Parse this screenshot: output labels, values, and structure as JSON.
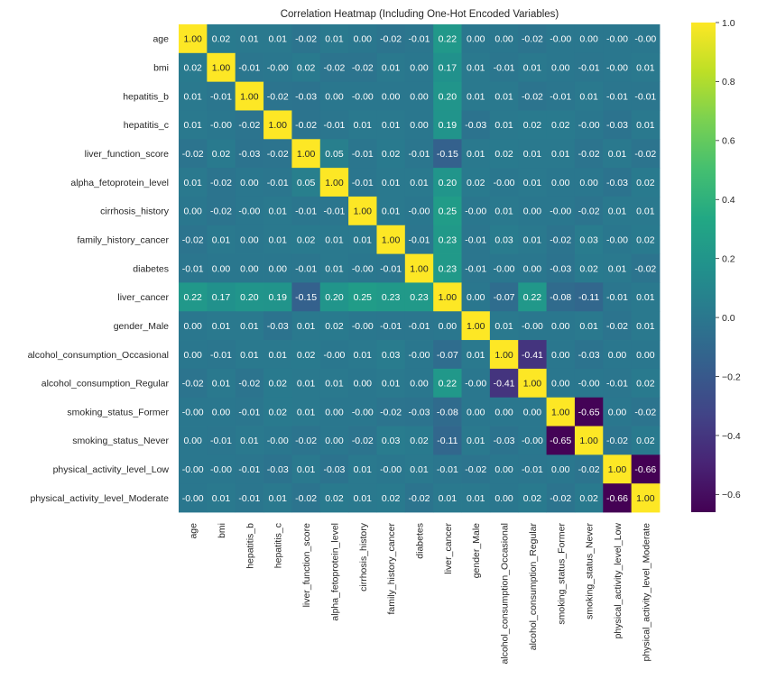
{
  "chart_data": {
    "type": "heatmap",
    "title": "Correlation Heatmap (Including One-Hot Encoded Variables)",
    "xlabel": "",
    "ylabel": "",
    "colormap": "viridis",
    "vmin": -0.66,
    "vmax": 1.0,
    "colorbar": {
      "ticks": [
        1.0,
        0.8,
        0.6,
        0.4,
        0.2,
        0.0,
        -0.2,
        -0.4,
        -0.6
      ],
      "tick_labels": [
        "1.0",
        "0.8",
        "0.6",
        "0.4",
        "0.2",
        "0.0",
        "−0.2",
        "−0.4",
        "−0.6"
      ],
      "placement": "right"
    },
    "labels": [
      "age",
      "bmi",
      "hepatitis_b",
      "hepatitis_c",
      "liver_function_score",
      "alpha_fetoprotein_level",
      "cirrhosis_history",
      "family_history_cancer",
      "diabetes",
      "liver_cancer",
      "gender_Male",
      "alcohol_consumption_Occasional",
      "alcohol_consumption_Regular",
      "smoking_status_Former",
      "smoking_status_Never",
      "physical_activity_level_Low",
      "physical_activity_level_Moderate"
    ],
    "values": [
      [
        "1.00",
        "0.02",
        "0.01",
        "0.01",
        "-0.02",
        "0.01",
        "0.00",
        "-0.02",
        "-0.01",
        "0.22",
        "0.00",
        "0.00",
        "-0.02",
        "-0.00",
        "0.00",
        "-0.00",
        "-0.00"
      ],
      [
        "0.02",
        "1.00",
        "-0.01",
        "-0.00",
        "0.02",
        "-0.02",
        "-0.02",
        "0.01",
        "0.00",
        "0.17",
        "0.01",
        "-0.01",
        "0.01",
        "0.00",
        "-0.01",
        "-0.00",
        "0.01"
      ],
      [
        "0.01",
        "-0.01",
        "1.00",
        "-0.02",
        "-0.03",
        "0.00",
        "-0.00",
        "0.00",
        "0.00",
        "0.20",
        "0.01",
        "0.01",
        "-0.02",
        "-0.01",
        "0.01",
        "-0.01",
        "-0.01"
      ],
      [
        "0.01",
        "-0.00",
        "-0.02",
        "1.00",
        "-0.02",
        "-0.01",
        "0.01",
        "0.01",
        "0.00",
        "0.19",
        "-0.03",
        "0.01",
        "0.02",
        "0.02",
        "-0.00",
        "-0.03",
        "0.01"
      ],
      [
        "-0.02",
        "0.02",
        "-0.03",
        "-0.02",
        "1.00",
        "0.05",
        "-0.01",
        "0.02",
        "-0.01",
        "-0.15",
        "0.01",
        "0.02",
        "0.01",
        "0.01",
        "-0.02",
        "0.01",
        "-0.02"
      ],
      [
        "0.01",
        "-0.02",
        "0.00",
        "-0.01",
        "0.05",
        "1.00",
        "-0.01",
        "0.01",
        "0.01",
        "0.20",
        "0.02",
        "-0.00",
        "0.01",
        "0.00",
        "0.00",
        "-0.03",
        "0.02"
      ],
      [
        "0.00",
        "-0.02",
        "-0.00",
        "0.01",
        "-0.01",
        "-0.01",
        "1.00",
        "0.01",
        "-0.00",
        "0.25",
        "-0.00",
        "0.01",
        "0.00",
        "-0.00",
        "-0.02",
        "0.01",
        "0.01"
      ],
      [
        "-0.02",
        "0.01",
        "0.00",
        "0.01",
        "0.02",
        "0.01",
        "0.01",
        "1.00",
        "-0.01",
        "0.23",
        "-0.01",
        "0.03",
        "0.01",
        "-0.02",
        "0.03",
        "-0.00",
        "0.02"
      ],
      [
        "-0.01",
        "0.00",
        "0.00",
        "0.00",
        "-0.01",
        "0.01",
        "-0.00",
        "-0.01",
        "1.00",
        "0.23",
        "-0.01",
        "-0.00",
        "0.00",
        "-0.03",
        "0.02",
        "0.01",
        "-0.02"
      ],
      [
        "0.22",
        "0.17",
        "0.20",
        "0.19",
        "-0.15",
        "0.20",
        "0.25",
        "0.23",
        "0.23",
        "1.00",
        "0.00",
        "-0.07",
        "0.22",
        "-0.08",
        "-0.11",
        "-0.01",
        "0.01"
      ],
      [
        "0.00",
        "0.01",
        "0.01",
        "-0.03",
        "0.01",
        "0.02",
        "-0.00",
        "-0.01",
        "-0.01",
        "0.00",
        "1.00",
        "0.01",
        "-0.00",
        "0.00",
        "0.01",
        "-0.02",
        "0.01"
      ],
      [
        "0.00",
        "-0.01",
        "0.01",
        "0.01",
        "0.02",
        "-0.00",
        "0.01",
        "0.03",
        "-0.00",
        "-0.07",
        "0.01",
        "1.00",
        "-0.41",
        "0.00",
        "-0.03",
        "0.00",
        "0.00"
      ],
      [
        "-0.02",
        "0.01",
        "-0.02",
        "0.02",
        "0.01",
        "0.01",
        "0.00",
        "0.01",
        "0.00",
        "0.22",
        "-0.00",
        "-0.41",
        "1.00",
        "0.00",
        "-0.00",
        "-0.01",
        "0.02"
      ],
      [
        "-0.00",
        "0.00",
        "-0.01",
        "0.02",
        "0.01",
        "0.00",
        "-0.00",
        "-0.02",
        "-0.03",
        "-0.08",
        "0.00",
        "0.00",
        "0.00",
        "1.00",
        "-0.65",
        "0.00",
        "-0.02"
      ],
      [
        "0.00",
        "-0.01",
        "0.01",
        "-0.00",
        "-0.02",
        "0.00",
        "-0.02",
        "0.03",
        "0.02",
        "-0.11",
        "0.01",
        "-0.03",
        "-0.00",
        "-0.65",
        "1.00",
        "-0.02",
        "0.02"
      ],
      [
        "-0.00",
        "-0.00",
        "-0.01",
        "-0.03",
        "0.01",
        "-0.03",
        "0.01",
        "-0.00",
        "0.01",
        "-0.01",
        "-0.02",
        "0.00",
        "-0.01",
        "0.00",
        "-0.02",
        "1.00",
        "-0.66"
      ],
      [
        "-0.00",
        "0.01",
        "-0.01",
        "0.01",
        "-0.02",
        "0.02",
        "0.01",
        "0.02",
        "-0.02",
        "0.01",
        "0.01",
        "0.00",
        "0.02",
        "-0.02",
        "0.02",
        "-0.66",
        "1.00"
      ]
    ]
  }
}
